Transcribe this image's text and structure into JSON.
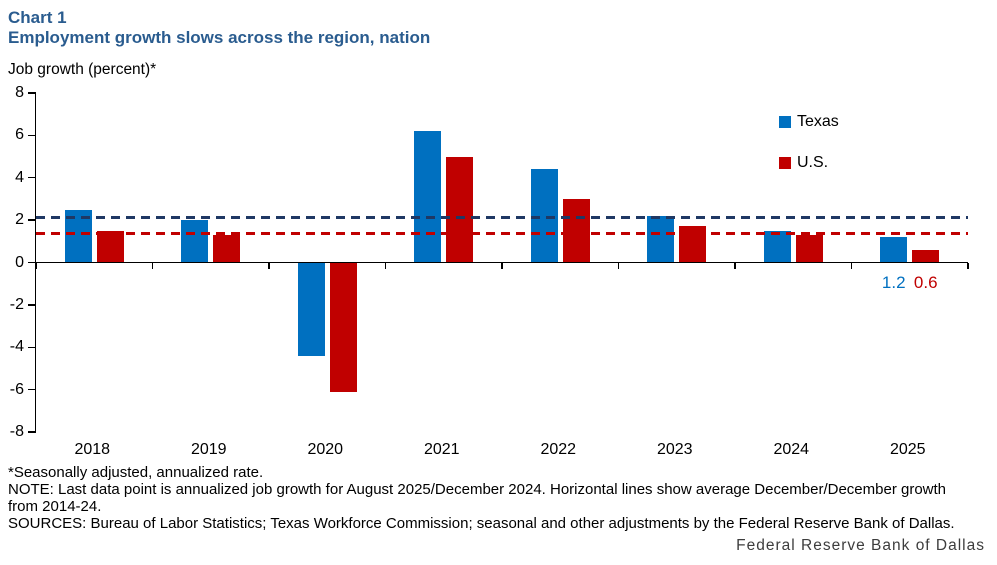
{
  "header": {
    "chart_number": "Chart 1"
  },
  "chart_data": {
    "type": "bar",
    "title": "Employment growth slows across the region, nation",
    "ylabel": "Job growth (percent)*",
    "xlabel": "",
    "categories": [
      "2018",
      "2019",
      "2020",
      "2021",
      "2022",
      "2023",
      "2024",
      "2025"
    ],
    "series": [
      {
        "name": "Texas",
        "color": "#0070c0",
        "values": [
          2.5,
          2.0,
          -4.4,
          6.2,
          4.4,
          2.2,
          1.5,
          1.2
        ]
      },
      {
        "name": "U.S.",
        "color": "#c00000",
        "values": [
          1.5,
          1.3,
          -6.1,
          5.0,
          3.0,
          1.7,
          1.3,
          0.6
        ]
      }
    ],
    "reference_lines": [
      {
        "name": "Texas average December/December growth 2014-24",
        "value": 2.1,
        "color": "#1f3864",
        "style": "dashed"
      },
      {
        "name": "U.S. average December/December growth 2014-24",
        "value": 1.35,
        "color": "#c00000",
        "style": "dashed"
      }
    ],
    "last_point_labels": [
      {
        "text": "1.2",
        "color": "#0070c0"
      },
      {
        "text": "0.6",
        "color": "#c00000"
      }
    ],
    "ylim": [
      -8,
      8
    ],
    "yticks": [
      8,
      6,
      4,
      2,
      0,
      -2,
      -4,
      -6,
      -8
    ],
    "legend_position": "top-right",
    "grid": false
  },
  "footnotes": [
    "*Seasonally adjusted, annualized rate.",
    "NOTE: Last data point is annualized job growth for August 2025/December 2024. Horizontal lines show average December/December growth from 2014-24.",
    "SOURCES: Bureau of Labor Statistics; Texas Workforce Commission; seasonal and other adjustments by the Federal Reserve Bank of Dallas."
  ],
  "footer": {
    "brand": "Federal Reserve Bank of Dallas"
  }
}
